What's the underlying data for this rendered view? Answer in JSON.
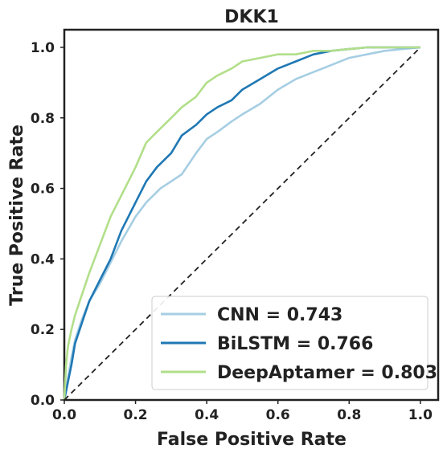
{
  "chart_data": {
    "type": "line",
    "title": "DKK1",
    "xlabel": "False Positive Rate",
    "ylabel": "True Positive Rate",
    "xlim": [
      0.0,
      1.05
    ],
    "ylim": [
      0.0,
      1.05
    ],
    "xticks": [
      "0.0",
      "0.2",
      "0.4",
      "0.6",
      "0.8",
      "1.0"
    ],
    "yticks": [
      "0.0",
      "0.2",
      "0.4",
      "0.6",
      "0.8",
      "1.0"
    ],
    "xtick_values": [
      0.0,
      0.2,
      0.4,
      0.6,
      0.8,
      1.0
    ],
    "ytick_values": [
      0.0,
      0.2,
      0.4,
      0.6,
      0.8,
      1.0
    ],
    "grid": false,
    "legend_position": "lower-right",
    "series": [
      {
        "name": "CNN = 0.743",
        "color": "#a6cee3",
        "x": [
          0,
          0.01,
          0.02,
          0.03,
          0.05,
          0.07,
          0.1,
          0.13,
          0.16,
          0.2,
          0.23,
          0.27,
          0.3,
          0.33,
          0.37,
          0.4,
          0.43,
          0.47,
          0.5,
          0.55,
          0.6,
          0.65,
          0.7,
          0.75,
          0.8,
          0.85,
          0.9,
          0.95,
          1.0
        ],
        "y": [
          0,
          0.06,
          0.12,
          0.17,
          0.23,
          0.28,
          0.33,
          0.39,
          0.45,
          0.52,
          0.56,
          0.6,
          0.62,
          0.64,
          0.7,
          0.74,
          0.76,
          0.79,
          0.81,
          0.84,
          0.88,
          0.91,
          0.93,
          0.95,
          0.97,
          0.98,
          0.99,
          0.995,
          1.0
        ]
      },
      {
        "name": "BiLSTM = 0.766",
        "color": "#1f78b4",
        "x": [
          0,
          0.01,
          0.02,
          0.03,
          0.05,
          0.07,
          0.1,
          0.13,
          0.16,
          0.2,
          0.23,
          0.26,
          0.3,
          0.33,
          0.37,
          0.4,
          0.43,
          0.47,
          0.5,
          0.55,
          0.6,
          0.65,
          0.7,
          0.75,
          0.8,
          0.85,
          0.9,
          0.95,
          1.0
        ],
        "y": [
          0,
          0.05,
          0.1,
          0.16,
          0.22,
          0.28,
          0.34,
          0.4,
          0.48,
          0.56,
          0.62,
          0.66,
          0.7,
          0.75,
          0.78,
          0.81,
          0.83,
          0.85,
          0.88,
          0.91,
          0.94,
          0.96,
          0.98,
          0.99,
          0.995,
          1.0,
          1.0,
          1.0,
          1.0
        ]
      },
      {
        "name": "DeepAptamer = 0.803",
        "color": "#b2df8a",
        "x": [
          0,
          0.005,
          0.01,
          0.02,
          0.03,
          0.05,
          0.07,
          0.1,
          0.13,
          0.16,
          0.2,
          0.23,
          0.26,
          0.3,
          0.33,
          0.37,
          0.4,
          0.43,
          0.47,
          0.5,
          0.55,
          0.6,
          0.65,
          0.7,
          0.75,
          0.8,
          0.85,
          0.9,
          0.95,
          1.0
        ],
        "y": [
          0,
          0.1,
          0.15,
          0.2,
          0.24,
          0.3,
          0.36,
          0.44,
          0.52,
          0.58,
          0.66,
          0.73,
          0.76,
          0.8,
          0.83,
          0.86,
          0.9,
          0.92,
          0.94,
          0.96,
          0.97,
          0.98,
          0.98,
          0.99,
          0.99,
          0.995,
          1.0,
          1.0,
          1.0,
          1.0
        ]
      },
      {
        "name": "",
        "role": "chance-diagonal",
        "color": "#222222",
        "dashed": true,
        "x": [
          0,
          1.0
        ],
        "y": [
          0,
          1.0
        ]
      }
    ]
  }
}
